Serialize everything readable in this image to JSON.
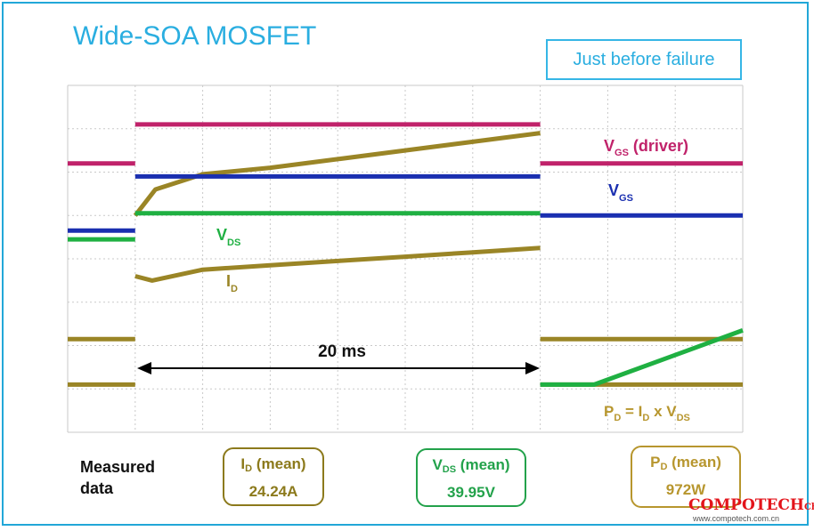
{
  "title": "Wide-SOA MOSFET",
  "status_box": "Just before failure",
  "chart_data": {
    "type": "line",
    "title": "Wide-SOA MOSFET",
    "annotation_interval": "20 ms",
    "grid": true,
    "series": [
      {
        "name": "VGS (driver)",
        "color": "#c0226a",
        "segments": [
          {
            "x": [
              0,
              1
            ],
            "y": [
              6.2,
              6.2
            ]
          },
          {
            "x": [
              1,
              7
            ],
            "y": [
              7.1,
              7.1
            ]
          },
          {
            "x": [
              7,
              10
            ],
            "y": [
              6.2,
              6.2
            ]
          }
        ]
      },
      {
        "name": "VGS",
        "color": "#1a2fb0",
        "segments": [
          {
            "x": [
              0,
              1
            ],
            "y": [
              4.65,
              4.65
            ]
          },
          {
            "x": [
              1,
              7
            ],
            "y": [
              5.9,
              5.9
            ]
          },
          {
            "x": [
              7,
              10
            ],
            "y": [
              5.0,
              5.0
            ]
          }
        ]
      },
      {
        "name": "VDS",
        "color": "#1fb042",
        "segments": [
          {
            "x": [
              0,
              1
            ],
            "y": [
              4.45,
              4.45
            ]
          },
          {
            "x": [
              1,
              7
            ],
            "y": [
              5.05,
              5.05
            ]
          },
          {
            "x": [
              7,
              7.8,
              10
            ],
            "y": [
              1.1,
              1.1,
              2.35
            ]
          }
        ]
      },
      {
        "name": "ID",
        "color": "#9a8526",
        "segments": [
          {
            "x": [
              0,
              1
            ],
            "y": [
              2.15,
              2.15
            ]
          },
          {
            "x": [
              1,
              1.25,
              2,
              3,
              4,
              5,
              6,
              7
            ],
            "y": [
              3.6,
              3.5,
              3.75,
              3.85,
              3.95,
              4.05,
              4.15,
              4.25
            ]
          },
          {
            "x": [
              7,
              10
            ],
            "y": [
              2.15,
              2.15
            ]
          }
        ]
      },
      {
        "name": "PD",
        "color": "#9a8526",
        "segments": [
          {
            "x": [
              0,
              1
            ],
            "y": [
              1.1,
              1.1
            ]
          },
          {
            "x": [
              1,
              1.3,
              2,
              3,
              4,
              5,
              6,
              7
            ],
            "y": [
              5.0,
              5.6,
              5.95,
              6.1,
              6.3,
              6.5,
              6.7,
              6.9
            ]
          },
          {
            "x": [
              7,
              10
            ],
            "y": [
              1.1,
              1.1
            ]
          }
        ]
      }
    ],
    "labels": {
      "vgs_driver": {
        "main": "V",
        "sub": "GS",
        "rest": " (driver)"
      },
      "vgs": {
        "main": "V",
        "sub": "GS"
      },
      "vds": {
        "main": "V",
        "sub": "DS"
      },
      "id": {
        "main": "I",
        "sub": "D"
      },
      "pd_formula": {
        "p1": "P",
        "s1": "D",
        "p2": " = I",
        "s2": "D",
        "p3": " x V",
        "s3": "DS"
      }
    }
  },
  "measured": {
    "label_line1": "Measured",
    "label_line2": "data",
    "id": {
      "name": "I",
      "sub": "D",
      "suffix": " (mean)",
      "value": "24.24A"
    },
    "vds": {
      "name": "V",
      "sub": "DS",
      "suffix": " (mean)",
      "value": "39.95V"
    },
    "pd": {
      "name": "P",
      "sub": "D",
      "suffix": " (mean)",
      "value": "972W"
    }
  },
  "watermark": {
    "brand": "COMPOTECH",
    "brand_suffix": "China",
    "url": "www.compotech.com.cn"
  }
}
